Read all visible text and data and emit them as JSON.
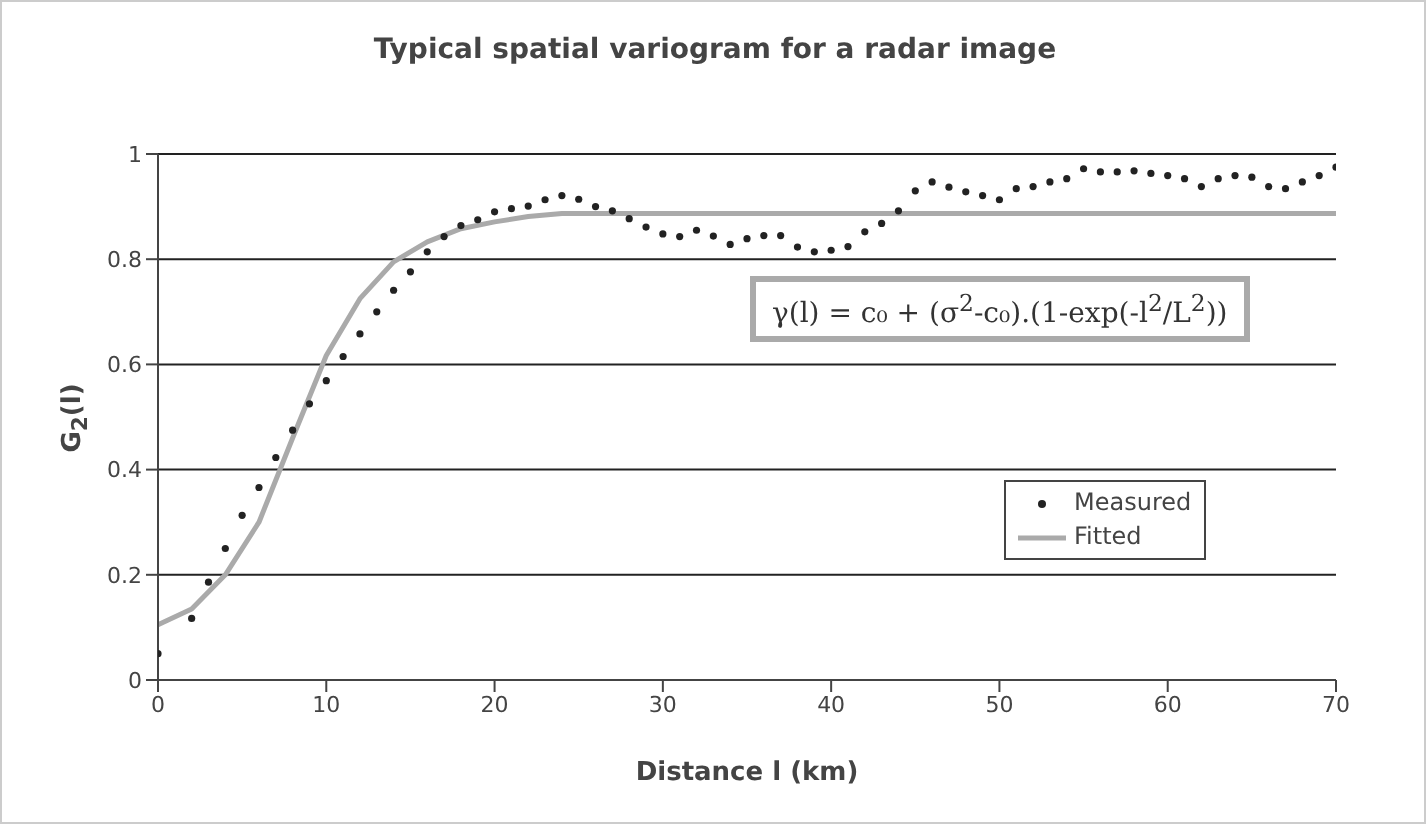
{
  "chart_data": {
    "type": "scatter",
    "title": "Typical spatial variogram for a radar image",
    "xlabel": "Distance  l (km)",
    "ylabel": "G$_{2}$(l)",
    "annotations": [
      "γ(l) = c₀ + (σ$^{2}$-c₀).(1-exp(-l$^{2}$/L$^{2}$))"
    ],
    "series": [
      {
        "name": "Measured",
        "color": "#222222",
        "x": [
          0,
          2,
          3,
          4,
          5,
          6,
          7,
          8,
          9,
          10,
          11,
          12,
          13,
          14,
          15,
          16,
          17,
          18,
          19,
          20,
          21,
          22,
          23,
          24,
          25,
          26,
          27,
          28,
          29,
          30,
          31,
          32,
          33,
          34,
          35,
          36,
          37,
          38,
          39,
          40,
          41,
          42,
          43,
          44,
          45,
          46,
          47,
          48,
          49,
          50,
          51,
          52,
          53,
          54,
          55,
          56,
          57,
          58,
          59,
          60,
          61,
          62,
          63,
          64,
          65,
          66,
          67,
          68,
          69,
          70
        ],
        "values": [
          0.05,
          0.117,
          0.186,
          0.25,
          0.313,
          0.366,
          0.423,
          0.475,
          0.525,
          0.569,
          0.615,
          0.658,
          0.7,
          0.741,
          0.776,
          0.814,
          0.843,
          0.864,
          0.875,
          0.89,
          0.896,
          0.901,
          0.913,
          0.921,
          0.914,
          0.9,
          0.892,
          0.877,
          0.861,
          0.848,
          0.843,
          0.855,
          0.844,
          0.828,
          0.839,
          0.845,
          0.845,
          0.823,
          0.814,
          0.817,
          0.824,
          0.852,
          0.868,
          0.892,
          0.93,
          0.947,
          0.937,
          0.928,
          0.921,
          0.913,
          0.934,
          0.938,
          0.947,
          0.953,
          0.972,
          0.966,
          0.966,
          0.968,
          0.963,
          0.959,
          0.953,
          0.938,
          0.953,
          0.959,
          0.956,
          0.938,
          0.934,
          0.947,
          0.959,
          0.975
        ]
      },
      {
        "name": "Fitted",
        "type": "line",
        "color": "#aaaaaa",
        "line_style": "solid",
        "marker": "none",
        "x": [
          0,
          2,
          4,
          6,
          8,
          10,
          12,
          14,
          16,
          18,
          20,
          22,
          24,
          70
        ],
        "values": [
          0.105,
          0.135,
          0.2,
          0.3,
          0.46,
          0.617,
          0.725,
          0.795,
          0.833,
          0.858,
          0.871,
          0.881,
          0.887,
          0.887
        ]
      }
    ],
    "marker": "circle",
    "xlim": [
      0,
      70
    ],
    "xticks": [
      0,
      10,
      20,
      30,
      40,
      50,
      60,
      70
    ],
    "ylim": [
      0,
      1
    ],
    "yticks": [
      0,
      0.2,
      0.4,
      0.6,
      0.8,
      1
    ],
    "grid": "y",
    "legend": "bottom right"
  }
}
